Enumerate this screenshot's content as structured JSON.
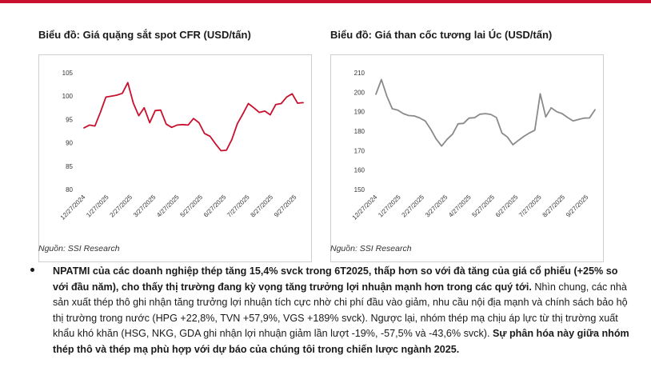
{
  "charts": {
    "left": {
      "title": "Biểu đồ: Giá quặng sắt spot CFR (USD/tấn)",
      "source": "Nguồn: SSI Research"
    },
    "right": {
      "title": "Biểu đồ: Giá than cốc tương lai Úc (USD/tấn)",
      "source": "Nguồn: SSI Research"
    }
  },
  "bullet": {
    "bold_1": "NPATMI của các doanh nghiệp thép tăng 15,4% svck trong 6T2025, thấp hơn so với đà tăng của giá cổ phiếu (+25% so với đầu năm), cho thấy thị trường đang kỳ vọng tăng trưởng lợi nhuận mạnh hơn trong các quý tới.",
    "normal": " Nhìn chung, các nhà sản xuất thép thô ghi nhận tăng trưởng lợi nhuận tích cực nhờ chi phí đầu vào giảm, nhu cầu nội địa mạnh và chính sách bảo hộ thị trường trong nước (HPG +22,8%, TVN +57,9%, VGS +189% svck). Ngược lại, nhóm thép mạ chịu áp lực từ thị trường xuất khẩu khó khăn (HSG, NKG, GDA ghi nhận lợi nhuận giảm lần lượt -19%, -57,5% và -43,6% svck).",
    "bold_2": " Sự phân hóa này giữa nhóm thép thô và thép mạ phù hợp với dự báo của chúng tôi trong chiến lược ngành 2025."
  },
  "accent_color": "#c8102e",
  "chart_data": [
    {
      "type": "line",
      "title": "Biểu đồ: Giá quặng sắt spot CFR (USD/tấn)",
      "xlabel": "",
      "ylabel": "",
      "x_ticks": [
        "12/27/2024",
        "1/27/2025",
        "2/27/2025",
        "3/27/2025",
        "4/27/2025",
        "5/27/2025",
        "6/27/2025",
        "7/27/2025",
        "8/27/2025",
        "9/27/2025"
      ],
      "ylim": [
        80,
        105
      ],
      "y_ticks": [
        80,
        85,
        90,
        95,
        100,
        105
      ],
      "grid": false,
      "line_color": "#c8102e",
      "series": [
        {
          "values": [
            93.2,
            93.8,
            93.6,
            96.5,
            99.8,
            100.0,
            100.2,
            100.6,
            102.9,
            98.5,
            95.8,
            97.5,
            94.3,
            96.9,
            97.0,
            94.0,
            93.3,
            93.8,
            93.9,
            93.8,
            95.2,
            94.3,
            92.0,
            91.4,
            89.8,
            88.3,
            88.4,
            90.7,
            94.1,
            96.2,
            98.4,
            97.5,
            96.5,
            96.8,
            96.0,
            98.2,
            98.4,
            99.8,
            100.5,
            98.5,
            98.6
          ]
        }
      ]
    },
    {
      "type": "line",
      "title": "Biểu đồ: Giá than cốc tương lai Úc (USD/tấn)",
      "xlabel": "",
      "ylabel": "",
      "x_ticks": [
        "12/27/2024",
        "1/27/2025",
        "2/27/2025",
        "3/27/2025",
        "4/27/2025",
        "5/27/2025",
        "6/27/2025",
        "7/27/2025",
        "8/27/2025",
        "9/27/2025"
      ],
      "ylim": [
        150,
        210
      ],
      "y_ticks": [
        150,
        160,
        170,
        180,
        190,
        200,
        210
      ],
      "grid": false,
      "line_color": "#8a8a8a",
      "series": [
        {
          "values": [
            199.0,
            206.5,
            198.0,
            191.5,
            190.8,
            189.0,
            188.0,
            187.8,
            186.8,
            185.2,
            181.0,
            176.0,
            172.3,
            175.8,
            178.5,
            183.8,
            184.0,
            186.7,
            186.9,
            188.7,
            189.0,
            188.6,
            187.0,
            179.0,
            177.0,
            173.0,
            175.2,
            177.3,
            179.0,
            180.5,
            199.2,
            187.3,
            192.0,
            190.0,
            189.0,
            187.0,
            185.2,
            186.0,
            186.7,
            186.8,
            191.0
          ]
        }
      ]
    }
  ]
}
